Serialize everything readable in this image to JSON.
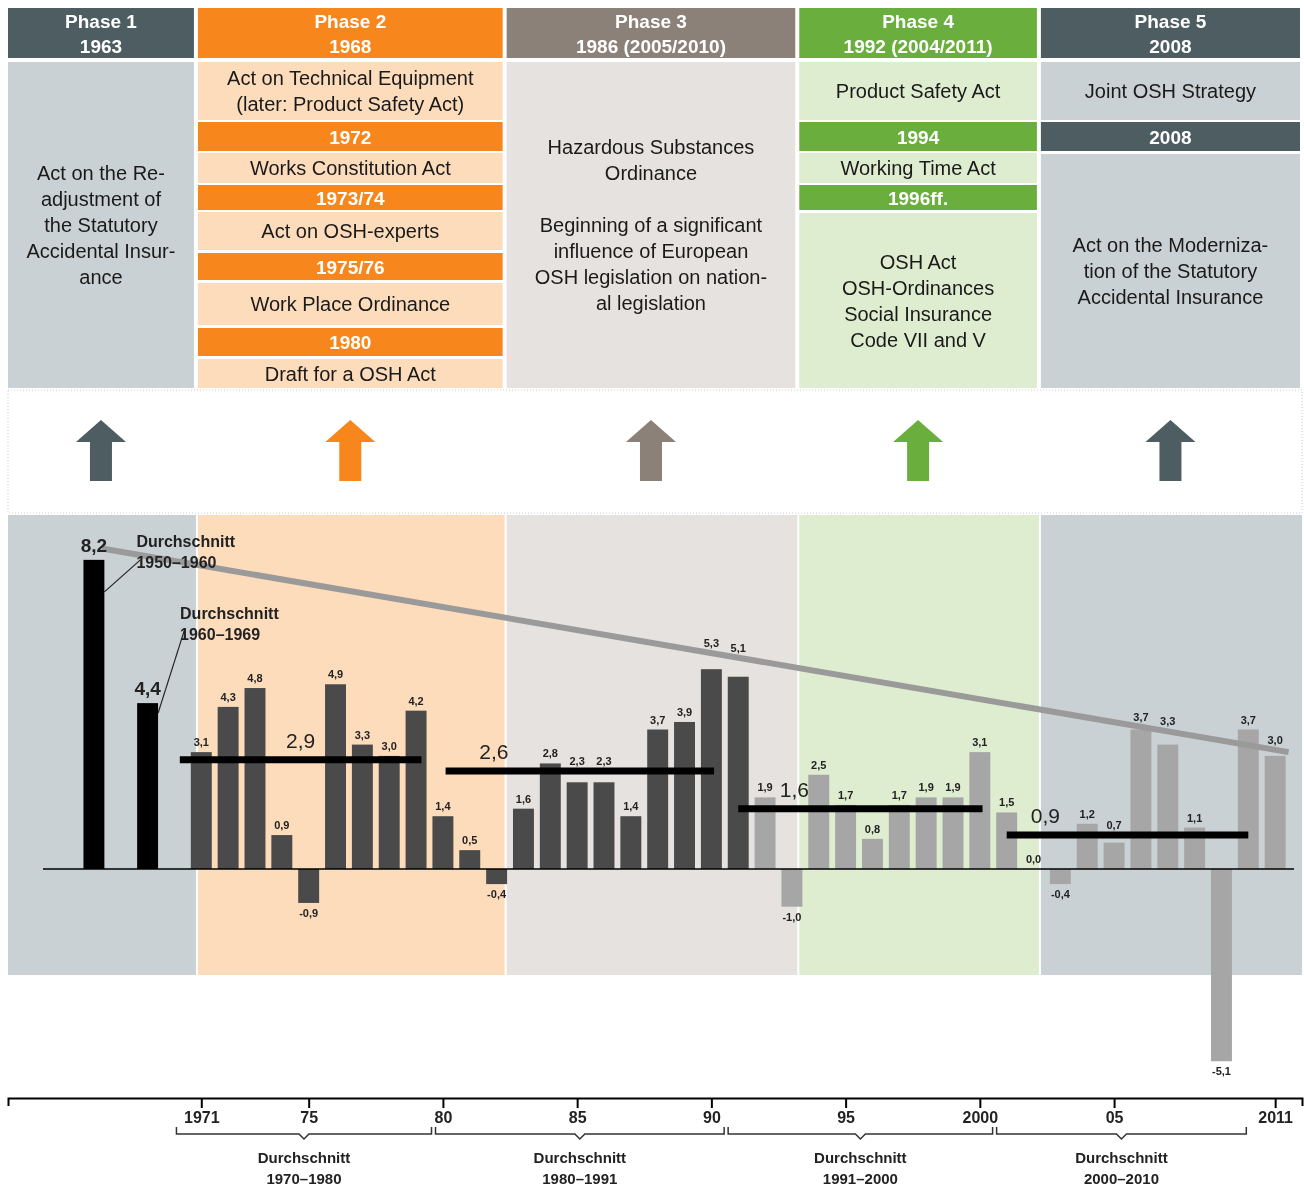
{
  "chart_data": {
    "type": "bar",
    "tick_labels": "x",
    "xlim": [
      1963.8,
      2012.0
    ],
    "xticks": [
      1971,
      {
        "value": 1975,
        "label": "75"
      },
      {
        "value": 1980,
        "label": "80"
      },
      {
        "value": 1985,
        "label": "85"
      },
      {
        "value": 1990,
        "label": "90"
      },
      {
        "value": 1995,
        "label": "95"
      },
      2000,
      {
        "value": 2005,
        "label": "05"
      },
      2011
    ],
    "bands": [
      {
        "axis": "x",
        "from": 1963.8,
        "to": 1970.8,
        "color": "#c9d1d4"
      },
      {
        "axis": "x",
        "from": 1970.8,
        "to": 1982.3,
        "color": "#fddcbc"
      },
      {
        "axis": "x",
        "from": 1982.3,
        "to": 1993.2,
        "color": "#e6e2df"
      },
      {
        "axis": "x",
        "from": 1993.2,
        "to": 2002.2,
        "color": "#deedcf"
      },
      {
        "axis": "x",
        "from": 2002.2,
        "to": 2012.0,
        "color": "#c9d1d4"
      }
    ],
    "series": [
      {
        "x": [
          1967,
          1969,
          1971,
          1972,
          1973,
          1974,
          1975,
          1976,
          1977,
          1978,
          1979,
          1980,
          1981,
          1982,
          1983,
          1984,
          1985,
          1986,
          1987,
          1988,
          1989,
          1990,
          1991,
          1992,
          1993,
          1994,
          1995,
          1996,
          1997,
          1998,
          1999,
          2000,
          2001,
          2002,
          2003,
          2004,
          2005,
          2006,
          2007,
          2008,
          2009,
          2010,
          2011
        ],
        "values": [
          8.2,
          4.4,
          3.1,
          4.3,
          4.8,
          0.9,
          -0.9,
          4.9,
          3.3,
          3.0,
          4.2,
          1.4,
          0.5,
          -0.4,
          1.6,
          2.8,
          2.3,
          2.3,
          1.4,
          3.7,
          3.9,
          5.3,
          5.1,
          1.9,
          -1.0,
          2.5,
          1.7,
          0.8,
          1.7,
          1.9,
          1.9,
          3.1,
          1.5,
          0.0,
          -0.4,
          1.2,
          0.7,
          3.7,
          3.3,
          1.1,
          -5.1,
          3.7,
          3.0
        ],
        "value_labels": [
          "8,2",
          "4,4",
          "3,1",
          "4,3",
          "4,8",
          "0,9",
          "-0,9",
          "4,9",
          "3,3",
          "3,0",
          "4,2",
          "1,4",
          "0,5",
          "-0,4",
          "1,6",
          "2,8",
          "2,3",
          "2,3",
          "1,4",
          "3,7",
          "3,9",
          "5,3",
          "5,1",
          "1,9",
          "-1,0",
          "2,5",
          "1,7",
          "0,8",
          "1,7",
          "1,9",
          "1,9",
          "3,1",
          "1,5",
          "0,0",
          "-0,4",
          "1,2",
          "0,7",
          "3,7",
          "3,3",
          "1,1",
          "-5,1",
          "3,7",
          "3,0"
        ],
        "colors": [
          "#000000",
          "#000000",
          "#4a4a4a",
          "#4a4a4a",
          "#4a4a4a",
          "#4a4a4a",
          "#4a4a4a",
          "#4a4a4a",
          "#4a4a4a",
          "#4a4a4a",
          "#4a4a4a",
          "#4a4a4a",
          "#4a4a4a",
          "#4a4a4a",
          "#4a4a4a",
          "#4a4a4a",
          "#4a4a4a",
          "#4a4a4a",
          "#4a4a4a",
          "#4a4a4a",
          "#4a4a4a",
          "#4a4a4a",
          "#4a4a4a",
          "#a6a6a6",
          "#a6a6a6",
          "#a6a6a6",
          "#a6a6a6",
          "#a6a6a6",
          "#a6a6a6",
          "#a6a6a6",
          "#a6a6a6",
          "#a6a6a6",
          "#a6a6a6",
          "#a6a6a6",
          "#a6a6a6",
          "#a6a6a6",
          "#a6a6a6",
          "#a6a6a6",
          "#a6a6a6",
          "#a6a6a6",
          "#a6a6a6",
          "#a6a6a6",
          "#a6a6a6"
        ]
      },
      {
        "type": "line",
        "color": "#9a9a9a",
        "x": [
          1967.3,
          2011.5
        ],
        "values": [
          8.5,
          3.1
        ]
      },
      {
        "type": "line",
        "color": "#000000",
        "x": [
          1970.2,
          1979.2
        ],
        "values": [
          2.9,
          2.9
        ]
      },
      {
        "type": "line",
        "color": "#000000",
        "x": [
          1980.1,
          1990.1
        ],
        "values": [
          2.6,
          2.6
        ]
      },
      {
        "type": "line",
        "color": "#000000",
        "x": [
          1991.0,
          2000.1
        ],
        "values": [
          1.6,
          1.6
        ]
      },
      {
        "type": "line",
        "color": "#000000",
        "x": [
          2001.0,
          2010.0
        ],
        "values": [
          0.9,
          0.9
        ]
      }
    ],
    "annotations": [
      "Phase 1\n1963",
      "Act on the Re-\nadjustment of\nthe Statutory\nAccidental Insur-\nance",
      "Phase 2\n1968",
      "Act on Technical Equipment\n(later: Product Safety Act)",
      "1972",
      "Works Constitution Act",
      "1973/74",
      "Act on OSH-experts",
      "1975/76",
      "Work Place Ordinance",
      "1980",
      "Draft for a OSH Act",
      "Phase 3\n1986 (2005/2010)",
      "Hazardous Substances\nOrdinance\n\nBeginning of a significant\ninfluence of European\nOSH legislation on nation-\nal legislation",
      "Phase 4\n1992 (2004/2011)",
      "Product Safety Act",
      "1994",
      "Working Time Act",
      "1996ff.",
      "OSH Act\nOSH-Ordinances\nSocial Insurance\nCode VII and V",
      "Phase 5\n2008",
      "Joint OSH Strategy",
      "2008",
      "Act on the Moderniza-\ntion of the Statutory\nAccidental Insurance",
      "Durchschnitt\n1950–1960",
      "Durchschnitt\n1960–1969",
      "2,9",
      "2,6",
      "1,6",
      "0,9",
      "Durchschnitt\n1970–1980",
      "Durchschnitt\n1980–1991",
      "Durchschnitt\n1991–2000",
      "Durchschnitt\n2000–2010"
    ]
  }
}
